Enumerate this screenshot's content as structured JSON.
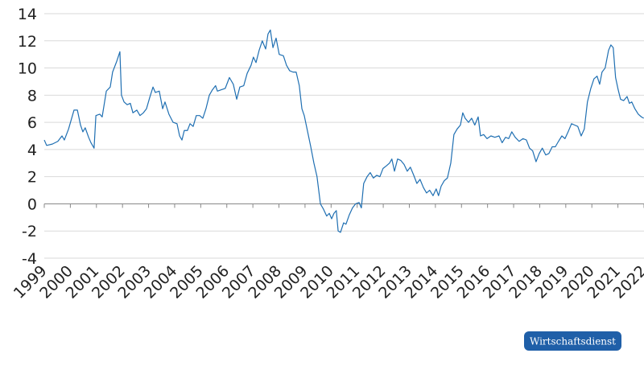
{
  "chart_data": {
    "type": "line",
    "source": "Wirtschaftsdienst",
    "x": [
      1999.0,
      1999.09,
      1999.31,
      1999.52,
      1999.68,
      1999.77,
      1999.93,
      2000.05,
      2000.14,
      2000.27,
      2000.39,
      2000.48,
      2000.57,
      2000.7,
      2000.79,
      2000.91,
      2000.98,
      2001.13,
      2001.22,
      2001.38,
      2001.53,
      2001.62,
      2001.78,
      2001.9,
      2001.96,
      2002.06,
      2002.18,
      2002.3,
      2002.4,
      2002.55,
      2002.67,
      2002.8,
      2002.92,
      2003.04,
      2003.17,
      2003.26,
      2003.41,
      2003.54,
      2003.63,
      2003.78,
      2003.94,
      2004.09,
      2004.19,
      2004.28,
      2004.37,
      2004.49,
      2004.59,
      2004.71,
      2004.83,
      2004.96,
      2005.08,
      2005.2,
      2005.33,
      2005.45,
      2005.57,
      2005.64,
      2005.79,
      2005.94,
      2006.1,
      2006.25,
      2006.38,
      2006.5,
      2006.65,
      2006.78,
      2006.93,
      2007.02,
      2007.12,
      2007.24,
      2007.36,
      2007.49,
      2007.58,
      2007.67,
      2007.77,
      2007.89,
      2008.01,
      2008.17,
      2008.29,
      2008.41,
      2008.54,
      2008.66,
      2008.78,
      2008.88,
      2008.97,
      2009.09,
      2009.22,
      2009.34,
      2009.46,
      2009.59,
      2009.71,
      2009.83,
      2009.93,
      2010.02,
      2010.11,
      2010.2,
      2010.27,
      2010.36,
      2010.48,
      2010.57,
      2010.7,
      2010.82,
      2010.94,
      2011.07,
      2011.16,
      2011.25,
      2011.38,
      2011.5,
      2011.62,
      2011.75,
      2011.87,
      2011.99,
      2012.12,
      2012.24,
      2012.33,
      2012.43,
      2012.55,
      2012.67,
      2012.8,
      2012.92,
      2013.04,
      2013.17,
      2013.29,
      2013.41,
      2013.54,
      2013.66,
      2013.78,
      2013.91,
      2014.03,
      2014.12,
      2014.22,
      2014.34,
      2014.46,
      2014.59,
      2014.71,
      2014.83,
      2014.96,
      2015.05,
      2015.14,
      2015.27,
      2015.39,
      2015.51,
      2015.64,
      2015.73,
      2015.85,
      2015.98,
      2016.13,
      2016.28,
      2016.44,
      2016.56,
      2016.69,
      2016.81,
      2016.93,
      2017.06,
      2017.21,
      2017.36,
      2017.49,
      2017.61,
      2017.73,
      2017.86,
      2017.98,
      2018.1,
      2018.23,
      2018.35,
      2018.48,
      2018.6,
      2018.72,
      2018.85,
      2018.97,
      2019.09,
      2019.22,
      2019.34,
      2019.46,
      2019.59,
      2019.71,
      2019.83,
      2019.96,
      2020.08,
      2020.2,
      2020.3,
      2020.39,
      2020.51,
      2020.64,
      2020.73,
      2020.82,
      2020.91,
      2021.01,
      2021.1,
      2021.22,
      2021.35,
      2021.44,
      2021.53,
      2021.65,
      2021.78,
      2021.9,
      2021.99
    ],
    "series": [
      {
        "color": "#1f6fb2",
        "values": [
          4.7,
          4.3,
          4.4,
          4.6,
          5.0,
          4.7,
          5.5,
          6.3,
          6.9,
          6.9,
          5.8,
          5.3,
          5.6,
          4.9,
          4.5,
          4.1,
          6.5,
          6.6,
          6.4,
          8.3,
          8.6,
          9.7,
          10.5,
          11.2,
          8.0,
          7.5,
          7.3,
          7.4,
          6.7,
          6.9,
          6.5,
          6.7,
          7.0,
          7.8,
          8.6,
          8.2,
          8.3,
          7.0,
          7.5,
          6.6,
          6.0,
          5.9,
          5.0,
          4.7,
          5.4,
          5.4,
          5.9,
          5.7,
          6.5,
          6.5,
          6.3,
          7.0,
          8.0,
          8.4,
          8.7,
          8.3,
          8.4,
          8.5,
          9.3,
          8.8,
          7.7,
          8.6,
          8.7,
          9.6,
          10.2,
          10.8,
          10.4,
          11.3,
          12.0,
          11.4,
          12.5,
          12.8,
          11.5,
          12.2,
          11.0,
          10.9,
          10.2,
          9.8,
          9.7,
          9.7,
          8.7,
          7.0,
          6.5,
          5.4,
          4.2,
          3.0,
          2.0,
          0.0,
          -0.4,
          -0.9,
          -0.7,
          -1.1,
          -0.7,
          -0.5,
          -2.0,
          -2.1,
          -1.4,
          -1.5,
          -0.8,
          -0.3,
          0.0,
          0.1,
          -0.3,
          1.5,
          2.0,
          2.3,
          1.9,
          2.1,
          2.0,
          2.6,
          2.8,
          3.0,
          3.3,
          2.4,
          3.3,
          3.2,
          2.9,
          2.4,
          2.7,
          2.1,
          1.5,
          1.8,
          1.2,
          0.8,
          1.0,
          0.6,
          1.1,
          0.6,
          1.3,
          1.7,
          1.9,
          3.0,
          5.1,
          5.5,
          5.8,
          6.7,
          6.3,
          6.0,
          6.3,
          5.8,
          6.4,
          5.0,
          5.1,
          4.8,
          5.0,
          4.9,
          5.0,
          4.5,
          4.9,
          4.8,
          5.3,
          4.9,
          4.6,
          4.8,
          4.7,
          4.1,
          3.9,
          3.1,
          3.7,
          4.1,
          3.6,
          3.7,
          4.2,
          4.2,
          4.6,
          5.0,
          4.8,
          5.3,
          5.9,
          5.8,
          5.7,
          5.0,
          5.5,
          7.5,
          8.5,
          9.2,
          9.4,
          8.8,
          9.7,
          10.0,
          11.3,
          11.7,
          11.5,
          9.3,
          8.4,
          7.7,
          7.6,
          7.9,
          7.4,
          7.5,
          7.0,
          6.6,
          6.4,
          6.3
        ]
      }
    ],
    "xlim": [
      1999,
      2022
    ],
    "xticks": [
      1999,
      2000,
      2001,
      2002,
      2003,
      2004,
      2005,
      2006,
      2007,
      2008,
      2009,
      2010,
      2011,
      2012,
      2013,
      2014,
      2015,
      2016,
      2017,
      2018,
      2019,
      2020,
      2021,
      2022
    ],
    "ylim": [
      -4,
      14
    ],
    "yticks": [
      -4,
      -2,
      0,
      2,
      4,
      6,
      8,
      10,
      12,
      14
    ],
    "grid": true
  }
}
